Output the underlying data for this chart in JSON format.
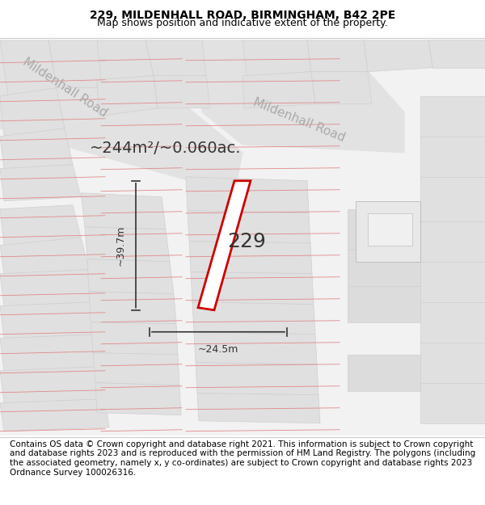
{
  "title": "229, MILDENHALL ROAD, BIRMINGHAM, B42 2PE",
  "subtitle": "Map shows position and indicative extent of the property.",
  "area_label": "~244m²/~0.060ac.",
  "number_label": "229",
  "dim_width": "~24.5m",
  "dim_height": "~39.7m",
  "road_label_1": "Mildenhall Road",
  "road_label_2": "Mildenhall Road",
  "background_color": "#f5f5f5",
  "map_bg": "#f0f0f0",
  "road_fill": "#e8e8e8",
  "plot_line_color": "#cc0000",
  "dim_line_color": "#333333",
  "building_fill": "#d8d8d8",
  "road_stripe_color": "#e0bcbc",
  "footer_text": "Contains OS data © Crown copyright and database right 2021. This information is subject to Crown copyright and database rights 2023 and is reproduced with the permission of HM Land Registry. The polygons (including the associated geometry, namely x, y co-ordinates) are subject to Crown copyright and database rights 2023 Ordnance Survey 100026316.",
  "title_fontsize": 10,
  "subtitle_fontsize": 9,
  "footer_fontsize": 7.5,
  "area_fontsize": 14,
  "number_fontsize": 18,
  "dim_fontsize": 9,
  "road_fontsize": 11
}
